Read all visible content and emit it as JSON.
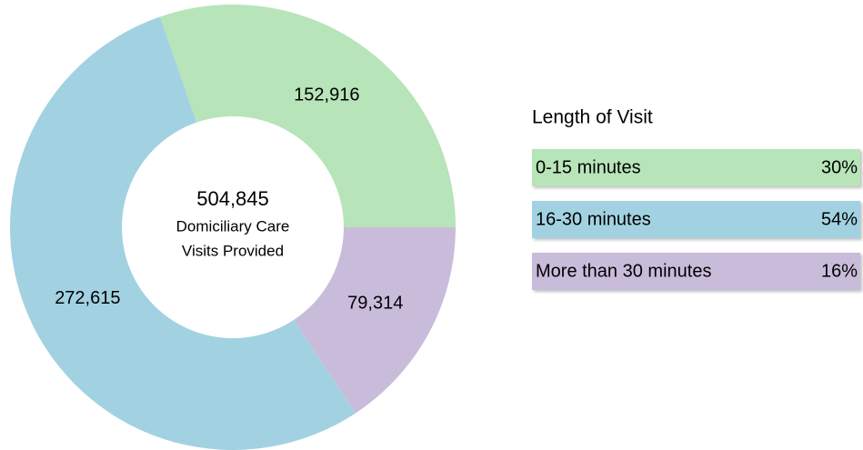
{
  "chart_data": {
    "type": "donut",
    "categories": [
      "0-15 minutes",
      "16-30 minutes",
      "More than 30 minutes"
    ],
    "values": [
      152916,
      272615,
      79314
    ],
    "value_labels": [
      "152,916",
      "272,615",
      "79,314"
    ],
    "colors": [
      "#b7e4b9",
      "#a2d2e2",
      "#c9bcdb"
    ],
    "shares": [
      {
        "value": 30,
        "label": "30%"
      },
      {
        "value": 54,
        "label": "54%"
      },
      {
        "value": 16,
        "label": "16%"
      }
    ],
    "total": {
      "value": 504845,
      "label": "504,845"
    },
    "center_text": [
      "Domiciliary Care",
      "Visits Provided"
    ],
    "legend_title": "Length of Visit"
  }
}
